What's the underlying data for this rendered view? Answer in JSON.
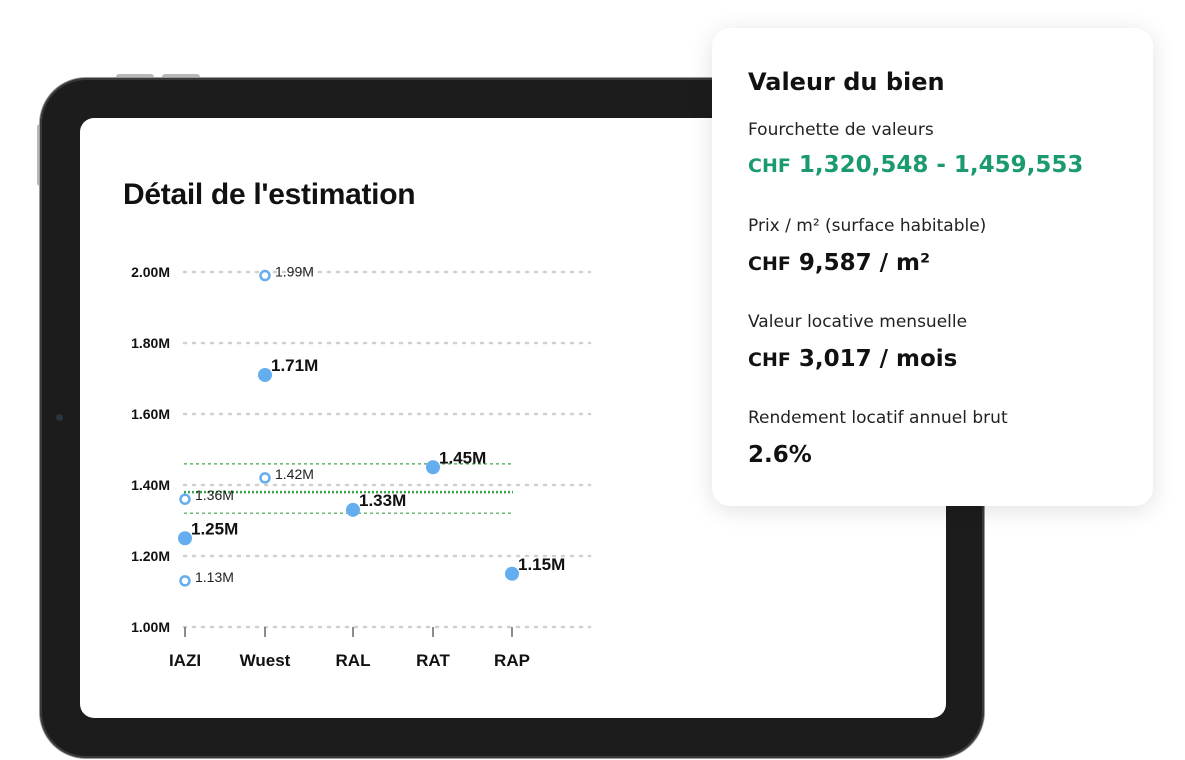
{
  "chart_data": {
    "type": "scatter",
    "title": "Détail de l'estimation",
    "categories": [
      "IAZI",
      "Wuest",
      "RAL",
      "RAT",
      "RAP"
    ],
    "y_ticks": [
      "2.00M",
      "1.80M",
      "1.60M",
      "1.40M",
      "1.20M",
      "1.00M"
    ],
    "ylim": [
      1.0,
      2.0
    ],
    "grid": true,
    "series": [
      {
        "style": "filled",
        "points": [
          {
            "category": "IAZI",
            "y": 1.25,
            "label": "1.25M"
          },
          {
            "category": "Wuest",
            "y": 1.71,
            "label": "1.71M"
          },
          {
            "category": "RAL",
            "y": 1.33,
            "label": "1.33M"
          },
          {
            "category": "RAT",
            "y": 1.45,
            "label": "1.45M"
          },
          {
            "category": "RAP",
            "y": 1.15,
            "label": "1.15M"
          }
        ]
      },
      {
        "style": "hollow",
        "points": [
          {
            "category": "IAZI",
            "y": 1.36,
            "label": "1.36M"
          },
          {
            "category": "IAZI",
            "y": 1.13,
            "label": "1.13M"
          },
          {
            "category": "Wuest",
            "y": 1.99,
            "label": "1.99M"
          },
          {
            "category": "Wuest",
            "y": 1.42,
            "label": "1.42M"
          }
        ]
      }
    ],
    "reference_lines": [
      {
        "y": 1.459553,
        "style": "dotted-thin"
      },
      {
        "y": 1.38,
        "style": "dotted-thick"
      },
      {
        "y": 1.320548,
        "style": "dotted-thin"
      }
    ],
    "colors": {
      "point": "#64aef0",
      "grid": "#d0d0d0",
      "reference": "#3aa64a"
    }
  },
  "card": {
    "title": "Valeur du bien",
    "range_label": "Fourchette de valeurs",
    "range_currency": "CHF",
    "range_value": "1,320,548 - 1,459,553",
    "sqm_label": "Prix / m² (surface habitable)",
    "sqm_currency": "CHF",
    "sqm_value": "9,587 / m²",
    "rent_label": "Valeur locative mensuelle",
    "rent_currency": "CHF",
    "rent_value": "3,017 / mois",
    "yield_label": "Rendement locatif annuel brut",
    "yield_value": "2.6%",
    "accent_color": "#1a9a6e"
  }
}
